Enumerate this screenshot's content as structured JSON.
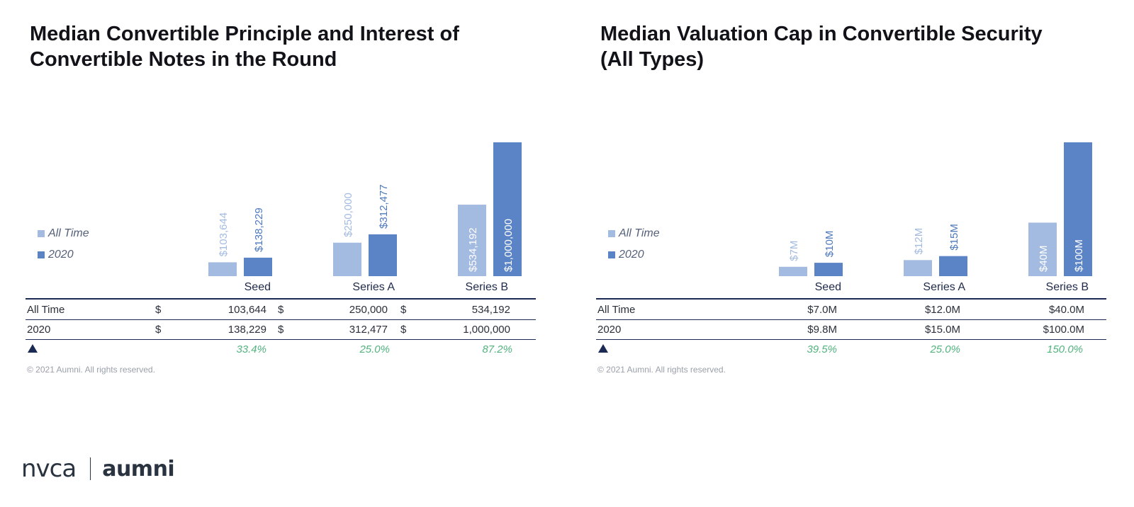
{
  "colors": {
    "all_time": "#a3bbe0",
    "y2020": "#5b84c6",
    "all_time_label": "#a3bbe0",
    "y2020_label": "#4e79bd",
    "pct": "#52b27e",
    "rule": "#1b2a55"
  },
  "chart_data": [
    {
      "type": "bar",
      "title_lines": [
        "Median Convertible Principle and Interest of",
        "Convertible Notes in the Round"
      ],
      "categories": [
        "Seed",
        "Series A",
        "Series B"
      ],
      "series": [
        {
          "name": "All Time",
          "values": [
            103644,
            250000,
            534192
          ],
          "labels": [
            "$103,644",
            "$250,000",
            "$534,192"
          ]
        },
        {
          "name": "2020",
          "values": [
            138229,
            312477,
            1000000
          ],
          "labels": [
            "$138,229",
            "$312,477",
            "$1,000,000"
          ]
        }
      ],
      "ylim": [
        0,
        1000000
      ],
      "legend_position": "left",
      "table": {
        "rows": [
          {
            "label": "All Time",
            "cells": [
              {
                "cur": "$",
                "val": "103,644"
              },
              {
                "cur": "$",
                "val": "250,000"
              },
              {
                "cur": "$",
                "val": "534,192"
              }
            ]
          },
          {
            "label": "2020",
            "cells": [
              {
                "cur": "$",
                "val": "138,229"
              },
              {
                "cur": "$",
                "val": "312,477"
              },
              {
                "cur": "$",
                "val": "1,000,000"
              }
            ]
          }
        ],
        "change": [
          "33.4%",
          "25.0%",
          "87.2%"
        ]
      },
      "copyright": "© 2021 Aumni. All rights reserved."
    },
    {
      "type": "bar",
      "title_lines": [
        "Median Valuation Cap in Convertible Security",
        "(All Types)"
      ],
      "categories": [
        "Seed",
        "Series A",
        "Series B"
      ],
      "series": [
        {
          "name": "All Time",
          "values": [
            7,
            12,
            40
          ],
          "labels": [
            "$7M",
            "$12M",
            "$40M"
          ]
        },
        {
          "name": "2020",
          "values": [
            10,
            15,
            100
          ],
          "labels": [
            "$10M",
            "$15M",
            "$100M"
          ]
        }
      ],
      "ylim": [
        0,
        100
      ],
      "legend_position": "left",
      "table": {
        "rows": [
          {
            "label": "All Time",
            "cells": [
              {
                "cur": "",
                "val": "$7.0M"
              },
              {
                "cur": "",
                "val": "$12.0M"
              },
              {
                "cur": "",
                "val": "$40.0M"
              }
            ]
          },
          {
            "label": "2020",
            "cells": [
              {
                "cur": "",
                "val": "$9.8M"
              },
              {
                "cur": "",
                "val": "$15.0M"
              },
              {
                "cur": "",
                "val": "$100.0M"
              }
            ]
          }
        ],
        "change": [
          "39.5%",
          "25.0%",
          "150.0%"
        ]
      },
      "copyright": "© 2021 Aumni. All rights reserved."
    }
  ],
  "footer": {
    "logo_left": "nvca",
    "logo_right": "aumni"
  }
}
